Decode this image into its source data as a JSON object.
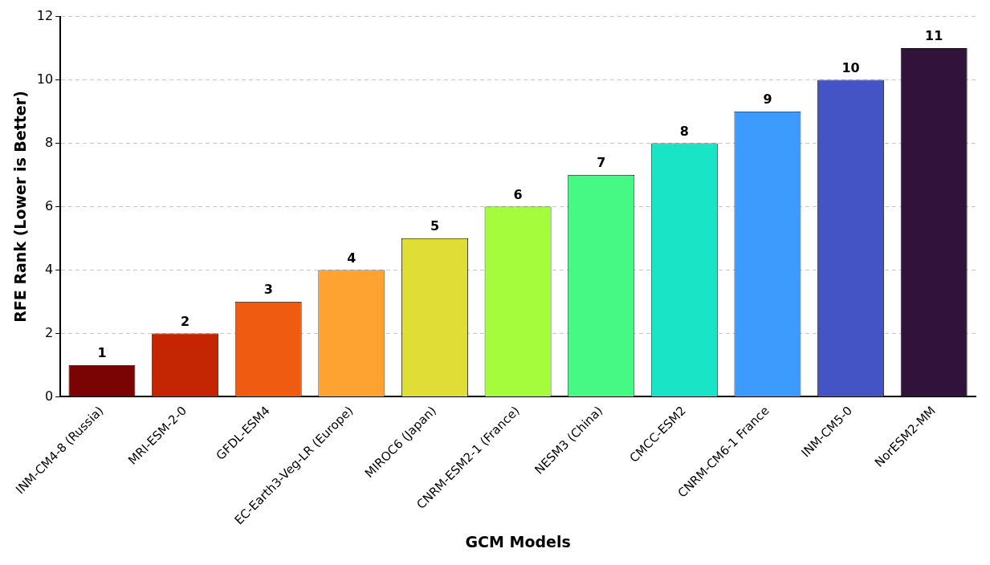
{
  "chart_data": {
    "type": "bar",
    "xlabel": "GCM Models",
    "ylabel": "RFE Rank (Lower is Better)",
    "categories": [
      "INM-CM4-8 (Russia)",
      "MRI-ESM-2-0",
      "GFDL-ESM4",
      "EC-Earth3-Veg-LR (Europe)",
      "MIROC6 (Japan)",
      "CNRM-ESM2-1 (France)",
      "NESM3 (China)",
      "CMCC-ESM2",
      "CNRM-CM6-1 France",
      "INM-CM5-0",
      "NorESM2-MM"
    ],
    "values": [
      1,
      2,
      3,
      4,
      5,
      6,
      7,
      8,
      9,
      10,
      11
    ],
    "colors": [
      "#7a0403",
      "#c42503",
      "#f05b12",
      "#fea331",
      "#e1dd37",
      "#a4fc3c",
      "#46f884",
      "#1ae4c6",
      "#3e9bfe",
      "#4454c4",
      "#30123b"
    ],
    "ylim": [
      0,
      12
    ],
    "yticks": [
      0,
      2,
      4,
      6,
      8,
      10,
      12
    ],
    "grid": "y",
    "data_labels": true,
    "legend": false
  }
}
